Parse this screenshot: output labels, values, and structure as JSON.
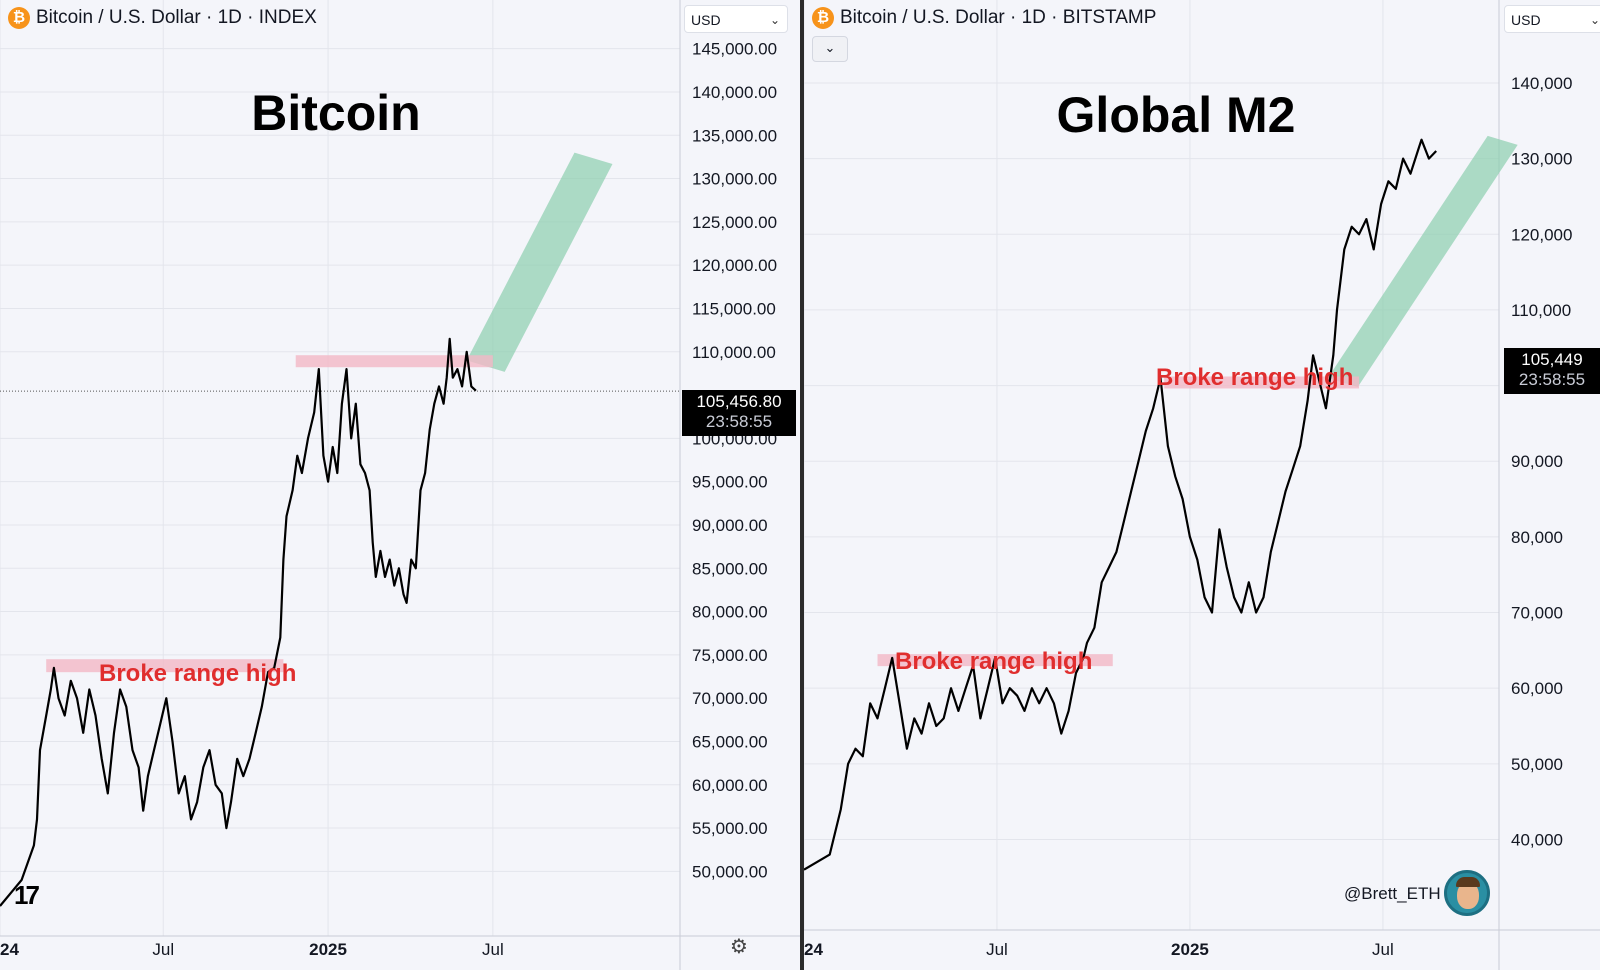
{
  "left_panel": {
    "symbol_title": "Bitcoin / U.S. Dollar · 1D · INDEX",
    "coin_glyph": "₿",
    "currency": "USD",
    "chart_title": "Bitcoin",
    "annotation": "Broke range high",
    "last_price": "105,456.80",
    "countdown": "23:58:55",
    "settings_icon": "gear-icon",
    "logo": "tradingview-logo"
  },
  "right_panel": {
    "symbol_title": "Bitcoin / U.S. Dollar · 1D · BITSTAMP",
    "coin_glyph": "₿",
    "currency": "USD",
    "collapse_icon": "chevron-down-icon",
    "chart_title": "Global M2",
    "annotation": "Broke range high",
    "last_price": "105,449",
    "countdown": "23:58:55",
    "handle": "@Brett_ETH",
    "avatar_icon": "avatar-icon"
  },
  "colors": {
    "background": "#f4f5fa",
    "line": "#000000",
    "range_band": "#f2b8c6",
    "channel": "#8ccfae",
    "annotation": "#e02e2e",
    "price_box": "#000000"
  },
  "chart_data": [
    {
      "type": "line",
      "title": "Bitcoin",
      "series": [
        {
          "values": [
            [
              0,
              46000
            ],
            [
              14,
              49000
            ],
            [
              22,
              53000
            ],
            [
              24,
              56000
            ],
            [
              26,
              64000
            ],
            [
              30,
              68000
            ],
            [
              33,
              71000
            ],
            [
              35,
              73500
            ],
            [
              38,
              70000
            ],
            [
              42,
              68000
            ],
            [
              46,
              72000
            ],
            [
              50,
              70000
            ],
            [
              54,
              66000
            ],
            [
              58,
              71000
            ],
            [
              62,
              68000
            ],
            [
              66,
              63000
            ],
            [
              70,
              59000
            ],
            [
              74,
              66000
            ],
            [
              78,
              71000
            ],
            [
              82,
              69000
            ],
            [
              86,
              64000
            ],
            [
              90,
              62000
            ],
            [
              93,
              57000
            ],
            [
              96,
              61000
            ],
            [
              100,
              64000
            ],
            [
              104,
              67000
            ],
            [
              108,
              70000
            ],
            [
              112,
              65000
            ],
            [
              116,
              59000
            ],
            [
              120,
              61000
            ],
            [
              124,
              56000
            ],
            [
              128,
              58000
            ],
            [
              132,
              62000
            ],
            [
              136,
              64000
            ],
            [
              140,
              60000
            ],
            [
              144,
              59000
            ],
            [
              147,
              55000
            ],
            [
              150,
              58000
            ],
            [
              154,
              63000
            ],
            [
              158,
              61000
            ],
            [
              162,
              63000
            ],
            [
              166,
              66000
            ],
            [
              170,
              69000
            ],
            [
              174,
              73000
            ],
            [
              178,
              73500
            ],
            [
              182,
              77000
            ],
            [
              184,
              86000
            ],
            [
              186,
              91000
            ],
            [
              190,
              94000
            ],
            [
              193,
              98000
            ],
            [
              196,
              96000
            ],
            [
              200,
              100000
            ],
            [
              204,
              103000
            ],
            [
              207,
              108000
            ],
            [
              210,
              98000
            ],
            [
              213,
              95000
            ],
            [
              216,
              99000
            ],
            [
              219,
              96000
            ],
            [
              222,
              104000
            ],
            [
              225,
              108000
            ],
            [
              228,
              100000
            ],
            [
              231,
              104000
            ],
            [
              234,
              97000
            ],
            [
              237,
              96000
            ],
            [
              240,
              94000
            ],
            [
              242,
              88000
            ],
            [
              244,
              84000
            ],
            [
              247,
              87000
            ],
            [
              250,
              84000
            ],
            [
              253,
              86000
            ],
            [
              256,
              83000
            ],
            [
              259,
              85000
            ],
            [
              262,
              82000
            ],
            [
              264,
              81000
            ],
            [
              267,
              86000
            ],
            [
              270,
              85000
            ],
            [
              273,
              94000
            ],
            [
              276,
              96000
            ],
            [
              279,
              101000
            ],
            [
              282,
              104000
            ],
            [
              285,
              106000
            ],
            [
              288,
              104000
            ],
            [
              290,
              107000
            ],
            [
              292,
              111500
            ],
            [
              294,
              107000
            ],
            [
              297,
              108000
            ],
            [
              300,
              106000
            ],
            [
              303,
              110000
            ],
            [
              306,
              106000
            ],
            [
              309,
              105500
            ]
          ]
        }
      ],
      "channel": {
        "from": [
          303,
          109000
        ],
        "to": [
          373,
          133000
        ]
      },
      "range_band": {
        "x_from": 192,
        "x_to": 320,
        "y_from": 108300,
        "y_to": 109600
      },
      "ylim": [
        46000,
        146000
      ],
      "y_ticks": [
        "145,000.00",
        "140,000.00",
        "135,000.00",
        "130,000.00",
        "125,000.00",
        "120,000.00",
        "115,000.00",
        "110,000.00",
        "100,000.00",
        "95,000.00",
        "90,000.00",
        "85,000.00",
        "80,000.00",
        "75,000.00",
        "70,000.00",
        "65,000.00",
        "60,000.00",
        "55,000.00",
        "50,000.00"
      ],
      "y_tick_values": [
        145000,
        140000,
        135000,
        130000,
        125000,
        120000,
        115000,
        110000,
        100000,
        95000,
        90000,
        85000,
        80000,
        75000,
        70000,
        65000,
        60000,
        55000,
        50000
      ],
      "x_ticks": [
        "24",
        "Jul",
        "2025",
        "Jul"
      ],
      "x_tick_days": [
        0,
        106,
        213,
        320
      ],
      "xlim": [
        0,
        448
      ],
      "annotations": [
        {
          "text": "Broke range high",
          "band_x": [
            30,
            184
          ],
          "band_y": [
            73000,
            74500
          ],
          "label_x": 110,
          "label_y": 77000
        }
      ],
      "last_value": 105456.8
    },
    {
      "type": "line",
      "title": "Global M2",
      "series": [
        {
          "values": [
            [
              0,
              36000
            ],
            [
              14,
              38000
            ],
            [
              20,
              44000
            ],
            [
              24,
              50000
            ],
            [
              28,
              52000
            ],
            [
              32,
              51000
            ],
            [
              36,
              58000
            ],
            [
              40,
              56000
            ],
            [
              44,
              60000
            ],
            [
              48,
              64000
            ],
            [
              52,
              58000
            ],
            [
              56,
              52000
            ],
            [
              60,
              56000
            ],
            [
              64,
              54000
            ],
            [
              68,
              58000
            ],
            [
              72,
              55000
            ],
            [
              76,
              56000
            ],
            [
              80,
              60000
            ],
            [
              84,
              57000
            ],
            [
              88,
              60000
            ],
            [
              92,
              63000
            ],
            [
              96,
              56000
            ],
            [
              100,
              60000
            ],
            [
              104,
              64000
            ],
            [
              108,
              58000
            ],
            [
              112,
              60000
            ],
            [
              116,
              59000
            ],
            [
              120,
              57000
            ],
            [
              124,
              60000
            ],
            [
              128,
              58000
            ],
            [
              132,
              60000
            ],
            [
              136,
              58000
            ],
            [
              140,
              54000
            ],
            [
              144,
              57000
            ],
            [
              148,
              62000
            ],
            [
              152,
              64000
            ],
            [
              154,
              66000
            ],
            [
              158,
              68000
            ],
            [
              162,
              74000
            ],
            [
              166,
              76000
            ],
            [
              170,
              78000
            ],
            [
              174,
              82000
            ],
            [
              178,
              86000
            ],
            [
              182,
              90000
            ],
            [
              186,
              94000
            ],
            [
              190,
              97000
            ],
            [
              194,
              101000
            ],
            [
              198,
              92000
            ],
            [
              202,
              88000
            ],
            [
              206,
              85000
            ],
            [
              210,
              80000
            ],
            [
              214,
              77000
            ],
            [
              218,
              72000
            ],
            [
              222,
              70000
            ],
            [
              226,
              81000
            ],
            [
              230,
              76000
            ],
            [
              234,
              72000
            ],
            [
              238,
              70000
            ],
            [
              242,
              74000
            ],
            [
              246,
              70000
            ],
            [
              250,
              72000
            ],
            [
              254,
              78000
            ],
            [
              258,
              82000
            ],
            [
              262,
              86000
            ],
            [
              266,
              89000
            ],
            [
              270,
              92000
            ],
            [
              274,
              98000
            ],
            [
              277,
              104000
            ],
            [
              280,
              101000
            ],
            [
              284,
              97000
            ],
            [
              288,
              104000
            ],
            [
              290,
              110000
            ],
            [
              294,
              118000
            ],
            [
              298,
              121000
            ],
            [
              302,
              120000
            ],
            [
              306,
              122000
            ],
            [
              310,
              118000
            ],
            [
              314,
              124000
            ],
            [
              318,
              127000
            ],
            [
              322,
              126000
            ],
            [
              326,
              130000
            ],
            [
              330,
              128000
            ],
            [
              334,
              131000
            ],
            [
              336,
              132500
            ],
            [
              340,
              130000
            ],
            [
              344,
              131000
            ]
          ]
        }
      ],
      "channel": {
        "from": [
          285,
          101000
        ],
        "to": [
          372,
          133000
        ]
      },
      "range_band": {
        "x_from": 196,
        "x_to": 302,
        "y_from": 99800,
        "y_to": 101200
      },
      "ylim": [
        32000,
        147000
      ],
      "y_ticks": [
        "140,000",
        "130,000",
        "120,000",
        "110,000",
        "100,000",
        "90,000",
        "80,000",
        "70,000",
        "60,000",
        "50,000",
        "40,000"
      ],
      "y_tick_values": [
        140000,
        130000,
        120000,
        110000,
        100000,
        90000,
        80000,
        70000,
        60000,
        50000,
        40000
      ],
      "x_ticks": [
        "24",
        "Jul",
        "2025",
        "Jul"
      ],
      "x_tick_days": [
        0,
        105,
        210,
        315
      ],
      "xlim": [
        0,
        370
      ],
      "annotations": [
        {
          "text": "Broke range high",
          "band_x": [
            40,
            168
          ],
          "band_y": [
            63000,
            64500
          ],
          "label_x": 46,
          "label_y": 66000
        }
      ],
      "last_value": 105449
    }
  ]
}
